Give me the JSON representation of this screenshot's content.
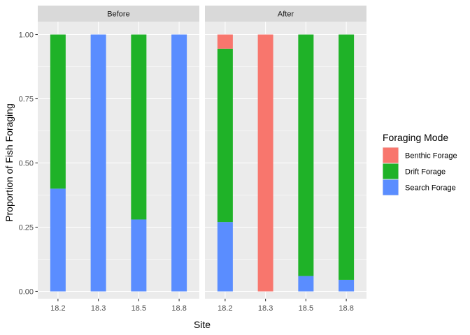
{
  "chart_data": {
    "type": "bar",
    "stacked": true,
    "xlabel": "Site",
    "ylabel": "Proportion of Fish Foraging",
    "ylim": [
      0,
      1
    ],
    "yticks": [
      "0.00",
      "0.25",
      "0.50",
      "0.75",
      "1.00"
    ],
    "yticks_values": [
      0,
      0.25,
      0.5,
      0.75,
      1.0
    ],
    "categories": [
      "18.2",
      "18.3",
      "18.5",
      "18.8"
    ],
    "grid": true,
    "legend": {
      "title": "Foraging Mode",
      "placement": "right",
      "entries": [
        "Benthic Forage",
        "Drift Forage",
        "Search Forage"
      ]
    },
    "colors": {
      "Benthic Forage": "#F8766D",
      "Drift Forage": "#1FB228",
      "Search Forage": "#5A8DFF",
      "panel_bg": "#EBEBEB",
      "strip_bg": "#D9D9D9",
      "grid_line": "#FFFFFF"
    },
    "stack_order_bottom_to_top": [
      "Search Forage",
      "Drift Forage",
      "Benthic Forage"
    ],
    "panels": [
      {
        "label": "Before",
        "series": [
          {
            "name": "Benthic Forage",
            "values": [
              0,
              0,
              0,
              0
            ]
          },
          {
            "name": "Drift Forage",
            "values": [
              0.6,
              0,
              0.72,
              0
            ]
          },
          {
            "name": "Search Forage",
            "values": [
              0.4,
              1.0,
              0.28,
              1.0
            ]
          }
        ]
      },
      {
        "label": "After",
        "series": [
          {
            "name": "Benthic Forage",
            "values": [
              0.055,
              1.0,
              0,
              0
            ]
          },
          {
            "name": "Drift Forage",
            "values": [
              0.675,
              0,
              0.94,
              0.955
            ]
          },
          {
            "name": "Search Forage",
            "values": [
              0.27,
              0,
              0.06,
              0.045
            ]
          }
        ]
      }
    ]
  }
}
